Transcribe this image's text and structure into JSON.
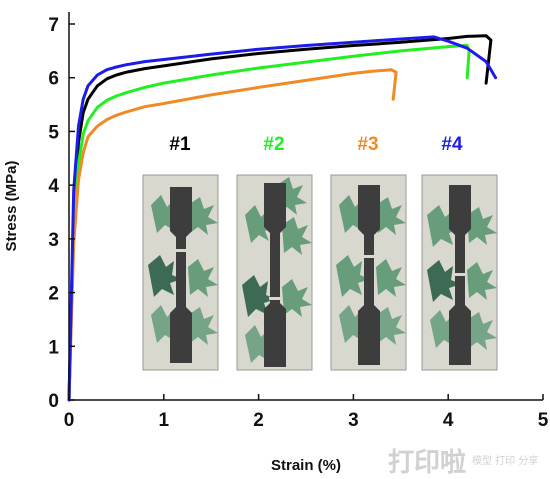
{
  "chart_data": {
    "type": "line",
    "xlabel": "Strain (%)",
    "ylabel": "Stress (MPa)",
    "xlim": [
      0,
      5
    ],
    "ylim": [
      0,
      7.3
    ],
    "x_ticks": [
      "0",
      "1",
      "2",
      "3",
      "4",
      "5"
    ],
    "y_ticks": [
      "0",
      "1",
      "2",
      "3",
      "4",
      "5",
      "6",
      "7"
    ],
    "grid": false,
    "series": [
      {
        "name": "#1",
        "color": "#000000",
        "x": [
          0,
          0.05,
          0.1,
          0.15,
          0.2,
          0.3,
          0.4,
          0.5,
          0.6,
          0.8,
          1.0,
          1.5,
          2.0,
          2.5,
          3.0,
          3.5,
          4.0,
          4.2,
          4.4,
          4.45,
          4.4
        ],
        "y": [
          0,
          3.5,
          4.8,
          5.35,
          5.6,
          5.85,
          5.98,
          6.05,
          6.1,
          6.17,
          6.22,
          6.35,
          6.45,
          6.53,
          6.6,
          6.66,
          6.73,
          6.77,
          6.78,
          6.7,
          5.9
        ]
      },
      {
        "name": "#2",
        "color": "#22ee22",
        "x": [
          0,
          0.05,
          0.1,
          0.15,
          0.2,
          0.3,
          0.4,
          0.5,
          0.6,
          0.8,
          1.0,
          1.5,
          2.0,
          2.5,
          3.0,
          3.5,
          4.0,
          4.2,
          4.22,
          4.2
        ],
        "y": [
          0,
          3.2,
          4.4,
          4.95,
          5.2,
          5.45,
          5.58,
          5.66,
          5.72,
          5.82,
          5.9,
          6.05,
          6.18,
          6.29,
          6.4,
          6.5,
          6.58,
          6.6,
          6.5,
          6.0
        ]
      },
      {
        "name": "#3",
        "color": "#f08a24",
        "x": [
          0,
          0.05,
          0.1,
          0.15,
          0.2,
          0.3,
          0.4,
          0.5,
          0.6,
          0.8,
          1.0,
          1.5,
          2.0,
          2.5,
          3.0,
          3.2,
          3.4,
          3.45,
          3.42
        ],
        "y": [
          0,
          2.9,
          4.1,
          4.6,
          4.9,
          5.1,
          5.22,
          5.3,
          5.36,
          5.46,
          5.52,
          5.68,
          5.82,
          5.95,
          6.08,
          6.12,
          6.15,
          6.1,
          5.6
        ]
      },
      {
        "name": "#4",
        "color": "#1c1ce6",
        "x": [
          0,
          0.05,
          0.1,
          0.15,
          0.2,
          0.3,
          0.4,
          0.5,
          0.6,
          0.8,
          1.0,
          1.5,
          2.0,
          2.5,
          3.0,
          3.5,
          3.85,
          4.0,
          4.2,
          4.4,
          4.5
        ],
        "y": [
          0,
          3.9,
          5.1,
          5.6,
          5.85,
          6.05,
          6.15,
          6.2,
          6.24,
          6.3,
          6.34,
          6.44,
          6.53,
          6.6,
          6.66,
          6.72,
          6.76,
          6.68,
          6.55,
          6.3,
          6.0
        ]
      }
    ],
    "legend_placement": "inset-center",
    "annotations": [
      "#1",
      "#2",
      "#3",
      "#4"
    ]
  },
  "samples": [
    {
      "label": "#1",
      "color": "#000000"
    },
    {
      "label": "#2",
      "color": "#22ee22"
    },
    {
      "label": "#3",
      "color": "#f08a24"
    },
    {
      "label": "#4",
      "color": "#1c1ce6"
    }
  ],
  "watermark": {
    "text": "打印啦",
    "sub": "模型 打印 分享"
  }
}
